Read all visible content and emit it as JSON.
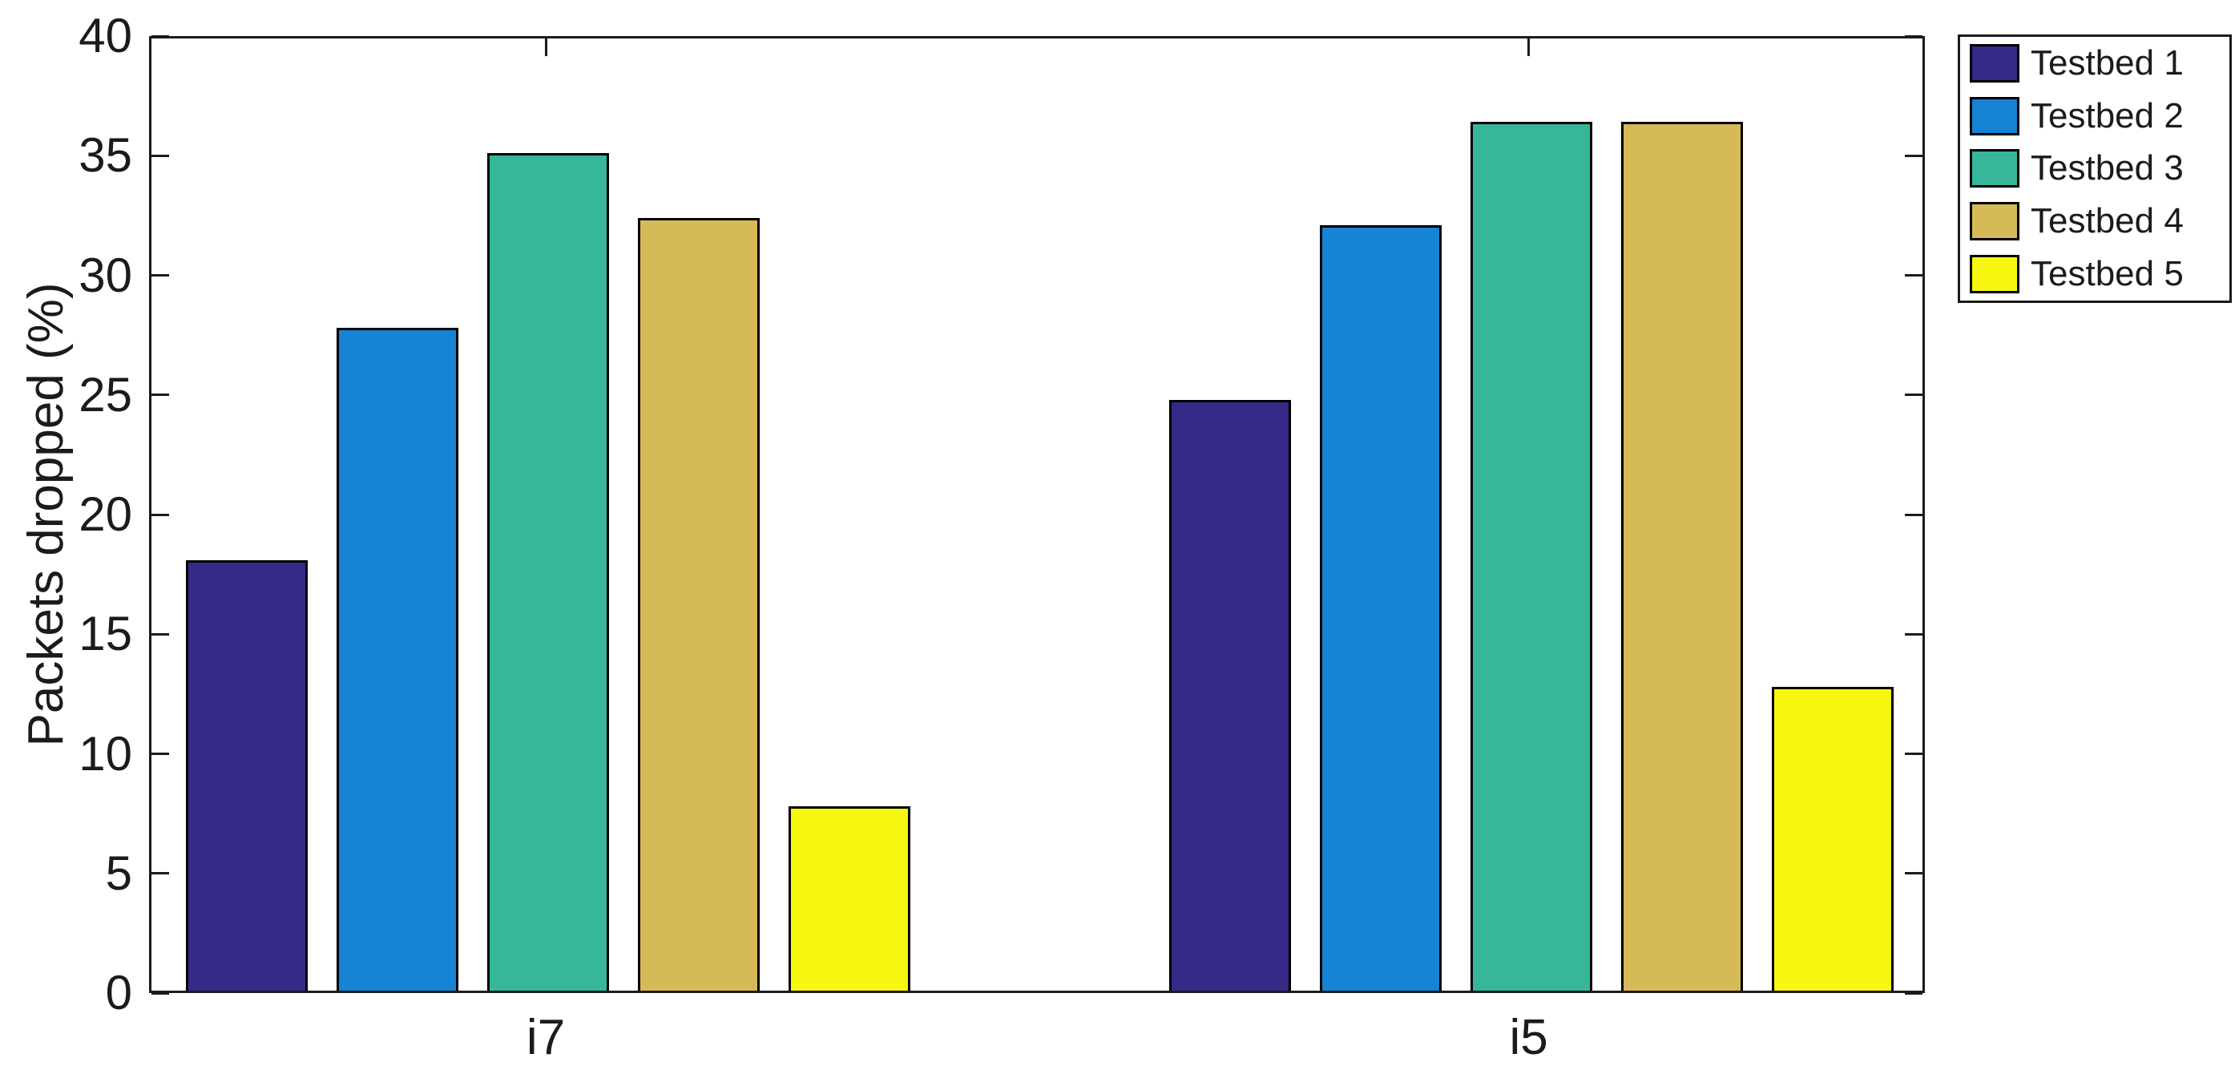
{
  "figure": {
    "background_color": "#ffffff",
    "axis_color": "#1b1b1b",
    "bar_edge_color": "#000000"
  },
  "chart_data": {
    "type": "bar",
    "title": "",
    "xlabel": "",
    "ylabel": "Packets dropped (%)",
    "categories": [
      "i7",
      "i5"
    ],
    "series": [
      {
        "name": "Testbed 1",
        "color": "#352A87",
        "values": [
          18.0,
          24.7
        ]
      },
      {
        "name": "Testbed 2",
        "color": "#1783D4",
        "values": [
          27.7,
          32.0
        ]
      },
      {
        "name": "Testbed 3",
        "color": "#36B79C",
        "values": [
          35.0,
          36.3
        ]
      },
      {
        "name": "Testbed 4",
        "color": "#D7BA58",
        "values": [
          32.3,
          36.3
        ]
      },
      {
        "name": "Testbed 5",
        "color": "#F8F711",
        "values": [
          7.7,
          12.7
        ]
      }
    ],
    "ylim": [
      0,
      40
    ],
    "yticks": [
      0,
      5,
      10,
      15,
      20,
      25,
      30,
      35,
      40
    ],
    "grid": false,
    "legend_position": "outside-right-top",
    "legend_labels": [
      "Testbed 1",
      "Testbed 2",
      "Testbed 3",
      "Testbed 4",
      "Testbed 5"
    ]
  }
}
